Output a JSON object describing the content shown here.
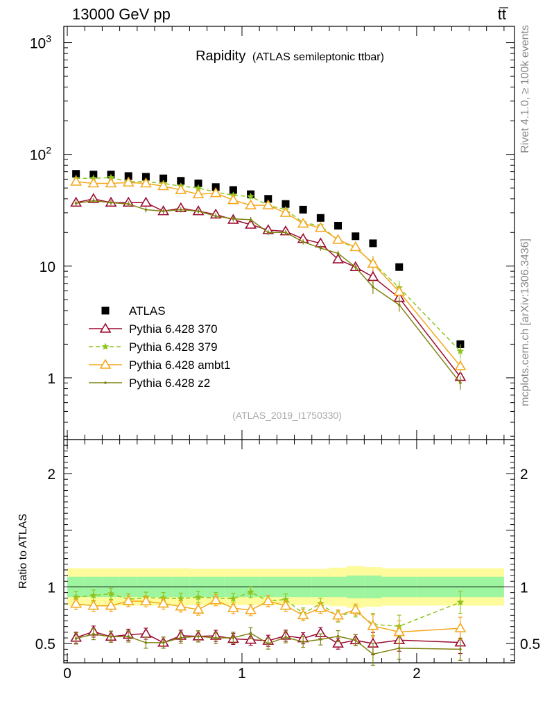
{
  "chart_data": {
    "type": "scatter",
    "header_left": "13000 GeV pp",
    "header_right": "tt̅",
    "title_main": "Rapidity",
    "title_sub": "(ATLAS semileptonic ttbar)",
    "analysis_label": "(ATLAS_2019_I1750330)",
    "side_label_top": "Rivet 4.1.0, ≥ 100k events",
    "side_label_bottom": "mcplots.cern.ch [arXiv:1306.3436]",
    "xlim": [
      -0.02,
      2.56
    ],
    "main_panel": {
      "yscale": "log",
      "ylim": [
        0.28,
        1400
      ],
      "tick_labels": [
        {
          "value": 1,
          "base": "1",
          "exp": ""
        },
        {
          "value": 10,
          "base": "10",
          "exp": ""
        },
        {
          "value": 100,
          "base": "10",
          "exp": "2"
        },
        {
          "value": 1000,
          "base": "10",
          "exp": "3"
        }
      ]
    },
    "ratio_panel": {
      "ylabel": "Ratio to ATLAS",
      "ylim": [
        0.33,
        2.3
      ],
      "ticks": [
        0.5,
        1,
        2
      ],
      "tick_labels": [
        "0.5",
        "1",
        "2"
      ]
    },
    "x_ticks": [
      0,
      1,
      2
    ],
    "x_tick_labels": [
      "0",
      "1",
      "2"
    ],
    "x_edges": [
      0.0,
      0.1,
      0.2,
      0.3,
      0.4,
      0.5,
      0.6,
      0.7,
      0.8,
      0.9,
      1.0,
      1.1,
      1.2,
      1.3,
      1.4,
      1.5,
      1.6,
      1.7,
      1.8,
      2.0,
      2.5
    ],
    "x": [
      0.05,
      0.15,
      0.25,
      0.35,
      0.45,
      0.55,
      0.65,
      0.75,
      0.85,
      0.95,
      1.05,
      1.15,
      1.25,
      1.35,
      1.45,
      1.55,
      1.65,
      1.75,
      1.9,
      2.25
    ],
    "data": {
      "name": "ATLAS",
      "values": [
        67,
        66,
        66,
        64,
        63,
        61,
        58,
        55,
        51,
        48,
        44,
        40,
        36,
        32,
        27,
        23,
        18.5,
        16,
        9.8,
        2.0
      ]
    },
    "band_inner": [
      0.09,
      0.09,
      0.09,
      0.09,
      0.09,
      0.09,
      0.09,
      0.09,
      0.09,
      0.09,
      0.09,
      0.09,
      0.09,
      0.09,
      0.09,
      0.09,
      0.1,
      0.1,
      0.09,
      0.09
    ],
    "band_outer": [
      0.165,
      0.165,
      0.165,
      0.165,
      0.165,
      0.165,
      0.165,
      0.16,
      0.16,
      0.16,
      0.16,
      0.16,
      0.16,
      0.16,
      0.16,
      0.17,
      0.185,
      0.175,
      0.165,
      0.165
    ],
    "series": [
      {
        "name": "Pythia 6.428 370",
        "color": "#9a0a2e",
        "marker": "triangle-open",
        "dash": "",
        "values": [
          37,
          40,
          37,
          37,
          37,
          31,
          33,
          31,
          29,
          26,
          23.5,
          21,
          20.5,
          17.5,
          16,
          11.5,
          9.8,
          8,
          5.2,
          1.02
        ]
      },
      {
        "name": "Pythia 6.428 379",
        "color": "#8fc41f",
        "marker": "star",
        "dash": "6,4",
        "values": [
          61,
          61,
          62,
          57,
          57,
          55,
          52,
          50,
          46,
          43,
          42,
          35,
          32,
          24.5,
          23,
          17,
          14.5,
          10.7,
          6.4,
          1.73
        ]
      },
      {
        "name": "Pythia 6.428 ambt1",
        "color": "#f5a71c",
        "marker": "triangle-open",
        "dash": "",
        "values": [
          57,
          55,
          55,
          56,
          55,
          52,
          48,
          44,
          45,
          39,
          35,
          35,
          30,
          24,
          22,
          17.2,
          14.8,
          10.5,
          5.9,
          1.27
        ]
      },
      {
        "name": "Pythia 6.428 z2",
        "color": "#7f8210",
        "marker": "dot",
        "dash": "",
        "values": [
          36.5,
          38.5,
          37,
          36,
          32,
          31,
          32,
          31,
          28,
          26.5,
          26,
          20,
          20,
          16.5,
          14.5,
          13,
          9.8,
          6.5,
          4.5,
          0.9
        ]
      }
    ],
    "legend": {
      "placement": "lower-left"
    }
  }
}
